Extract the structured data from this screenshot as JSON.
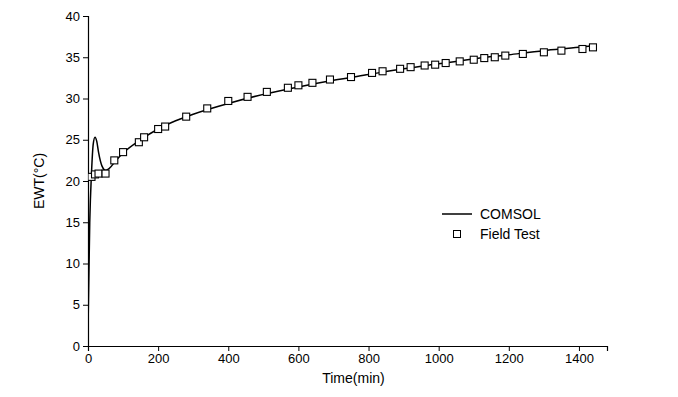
{
  "chart_data": {
    "type": "line",
    "x_label": "Time(min)",
    "y_label": "EWT(°C)",
    "xlim": [
      0,
      1480
    ],
    "xticks": [
      0,
      200,
      400,
      600,
      800,
      1000,
      1200,
      1400
    ],
    "ylim": [
      0,
      40
    ],
    "yticks": [
      0,
      5,
      10,
      15,
      20,
      25,
      30,
      35,
      40
    ],
    "grid": false,
    "legend": "right",
    "series": [
      {
        "name": "COMSOL",
        "type": "line",
        "color": "#000000",
        "line_style": "solid",
        "x": [
          0,
          5,
          10,
          15,
          20,
          25,
          30,
          40,
          50,
          60,
          80,
          100,
          150,
          200,
          250,
          300,
          400,
          500,
          600,
          700,
          800,
          900,
          1000,
          1100,
          1200,
          1300,
          1400,
          1440
        ],
        "values": [
          2,
          15,
          21,
          24.5,
          25.3,
          24.8,
          23.5,
          21.8,
          21.3,
          21.5,
          22.5,
          23.4,
          25,
          26.3,
          27.3,
          28.1,
          29.4,
          30.5,
          31.4,
          32.2,
          32.9,
          33.6,
          34.2,
          34.8,
          35.3,
          35.8,
          36.2,
          36.4
        ]
      },
      {
        "name": "Field Test",
        "type": "scatter",
        "color": "#000000",
        "marker": "square",
        "x": [
          10,
          20,
          30,
          50,
          75,
          100,
          145,
          160,
          200,
          220,
          280,
          340,
          400,
          455,
          510,
          570,
          600,
          640,
          690,
          750,
          810,
          840,
          890,
          920,
          960,
          990,
          1020,
          1060,
          1100,
          1130,
          1160,
          1190,
          1240,
          1300,
          1350,
          1410,
          1440
        ],
        "values": [
          20.5,
          20.8,
          20.9,
          20.9,
          22.5,
          23.5,
          24.7,
          25.3,
          26.3,
          26.6,
          27.8,
          28.8,
          29.7,
          30.2,
          30.8,
          31.3,
          31.6,
          31.9,
          32.3,
          32.6,
          33.1,
          33.3,
          33.6,
          33.8,
          34.0,
          34.1,
          34.3,
          34.5,
          34.7,
          34.9,
          35.0,
          35.2,
          35.4,
          35.6,
          35.8,
          36.0,
          36.2
        ]
      }
    ]
  }
}
